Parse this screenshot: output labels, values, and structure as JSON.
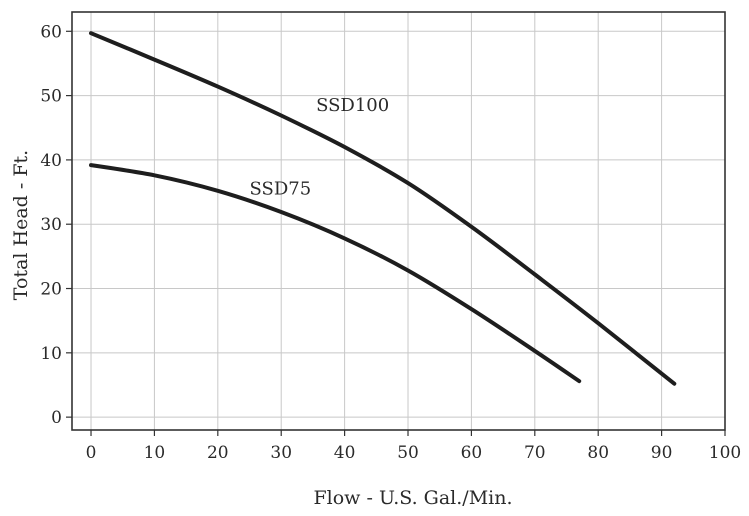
{
  "chart_data": {
    "type": "line",
    "title": "",
    "xlabel": "Flow - U.S. Gal./Min.",
    "ylabel": "Total Head - Ft.",
    "xlim": [
      -3,
      100
    ],
    "ylim": [
      -2,
      63
    ],
    "grid": true,
    "x_ticks": [
      0,
      10,
      20,
      30,
      40,
      50,
      60,
      70,
      80,
      90,
      100
    ],
    "y_ticks": [
      0,
      10,
      20,
      30,
      40,
      50,
      60
    ],
    "series": [
      {
        "name": "SSD100",
        "x": [
          0,
          10,
          20,
          30,
          40,
          50,
          60,
          70,
          80,
          92
        ],
        "y": [
          59.7,
          55.6,
          51.4,
          46.9,
          42,
          36.4,
          29.6,
          22.2,
          14.6,
          5.2
        ]
      },
      {
        "name": "SSD75",
        "x": [
          0,
          10,
          20,
          30,
          40,
          50,
          60,
          70,
          77
        ],
        "y": [
          39.2,
          37.6,
          35.2,
          31.9,
          27.8,
          22.8,
          16.8,
          10.3,
          5.6
        ]
      }
    ]
  }
}
